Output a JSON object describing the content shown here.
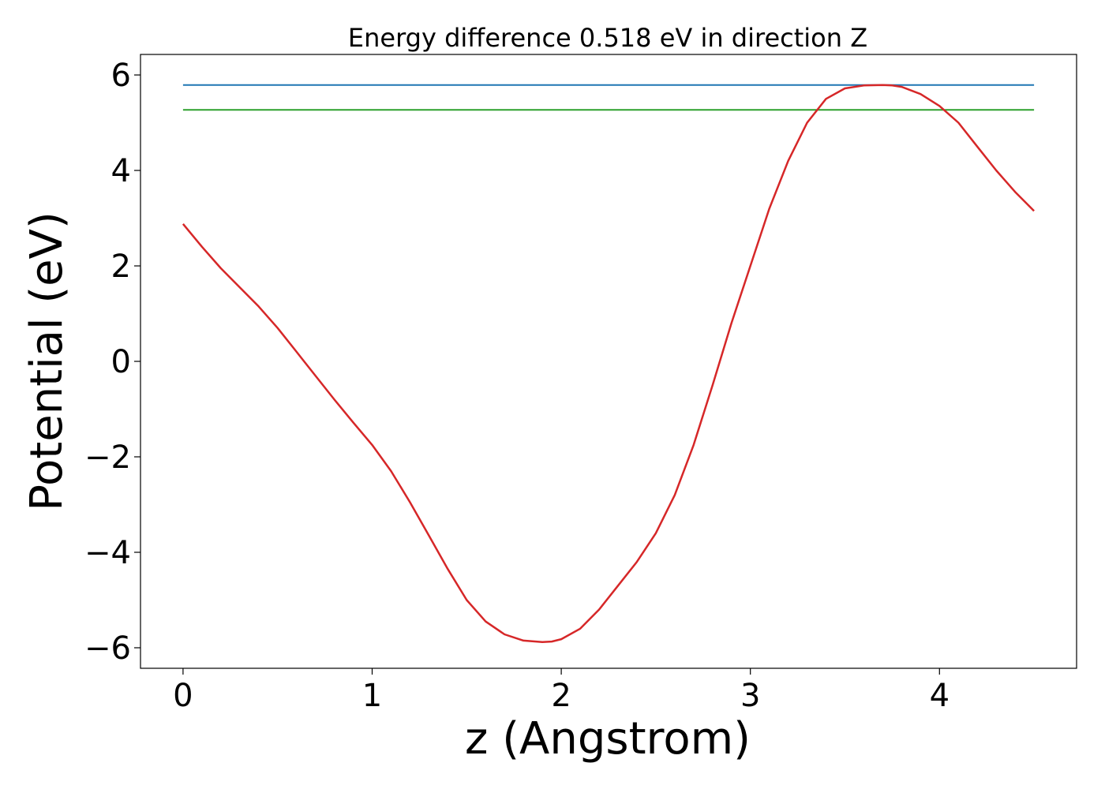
{
  "chart_data": {
    "type": "line",
    "title": "Energy difference 0.518 eV in direction Z",
    "xlabel": "z (Angstrom)",
    "ylabel": "Potential (eV)",
    "xlim": [
      -0.225,
      4.725
    ],
    "ylim": [
      -6.43,
      6.43
    ],
    "x_ticks": [
      0,
      1,
      2,
      3,
      4
    ],
    "x_tick_labels": [
      "0",
      "1",
      "2",
      "3",
      "4"
    ],
    "y_ticks": [
      -6,
      -4,
      -2,
      0,
      2,
      4,
      6
    ],
    "y_tick_labels": [
      "−6",
      "−4",
      "−2",
      "0",
      "2",
      "4",
      "6"
    ],
    "grid": false,
    "series": [
      {
        "color": "#d62728",
        "x": [
          0.0,
          0.1,
          0.2,
          0.3,
          0.4,
          0.5,
          0.6,
          0.7,
          0.8,
          0.9,
          1.0,
          1.1,
          1.2,
          1.3,
          1.4,
          1.5,
          1.6,
          1.7,
          1.8,
          1.9,
          1.95,
          2.0,
          2.1,
          2.2,
          2.3,
          2.4,
          2.5,
          2.6,
          2.7,
          2.8,
          2.9,
          3.0,
          3.1,
          3.2,
          3.3,
          3.4,
          3.5,
          3.6,
          3.7,
          3.75,
          3.8,
          3.9,
          4.0,
          4.1,
          4.2,
          4.3,
          4.4,
          4.5
        ],
        "y": [
          2.88,
          2.4,
          1.95,
          1.55,
          1.15,
          0.7,
          0.2,
          -0.3,
          -0.8,
          -1.28,
          -1.75,
          -2.3,
          -2.95,
          -3.65,
          -4.35,
          -5.0,
          -5.45,
          -5.72,
          -5.85,
          -5.88,
          -5.87,
          -5.82,
          -5.6,
          -5.2,
          -4.7,
          -4.2,
          -3.6,
          -2.8,
          -1.75,
          -0.5,
          0.8,
          2.0,
          3.2,
          4.2,
          5.0,
          5.5,
          5.72,
          5.78,
          5.79,
          5.78,
          5.75,
          5.6,
          5.35,
          5.0,
          4.5,
          4.0,
          3.55,
          3.15
        ]
      },
      {
        "color": "#1f77b4",
        "x": [
          0.0,
          4.5
        ],
        "y": [
          5.79,
          5.79
        ]
      },
      {
        "color": "#2ca02c",
        "x": [
          0.0,
          4.5
        ],
        "y": [
          5.27,
          5.27
        ]
      }
    ]
  }
}
